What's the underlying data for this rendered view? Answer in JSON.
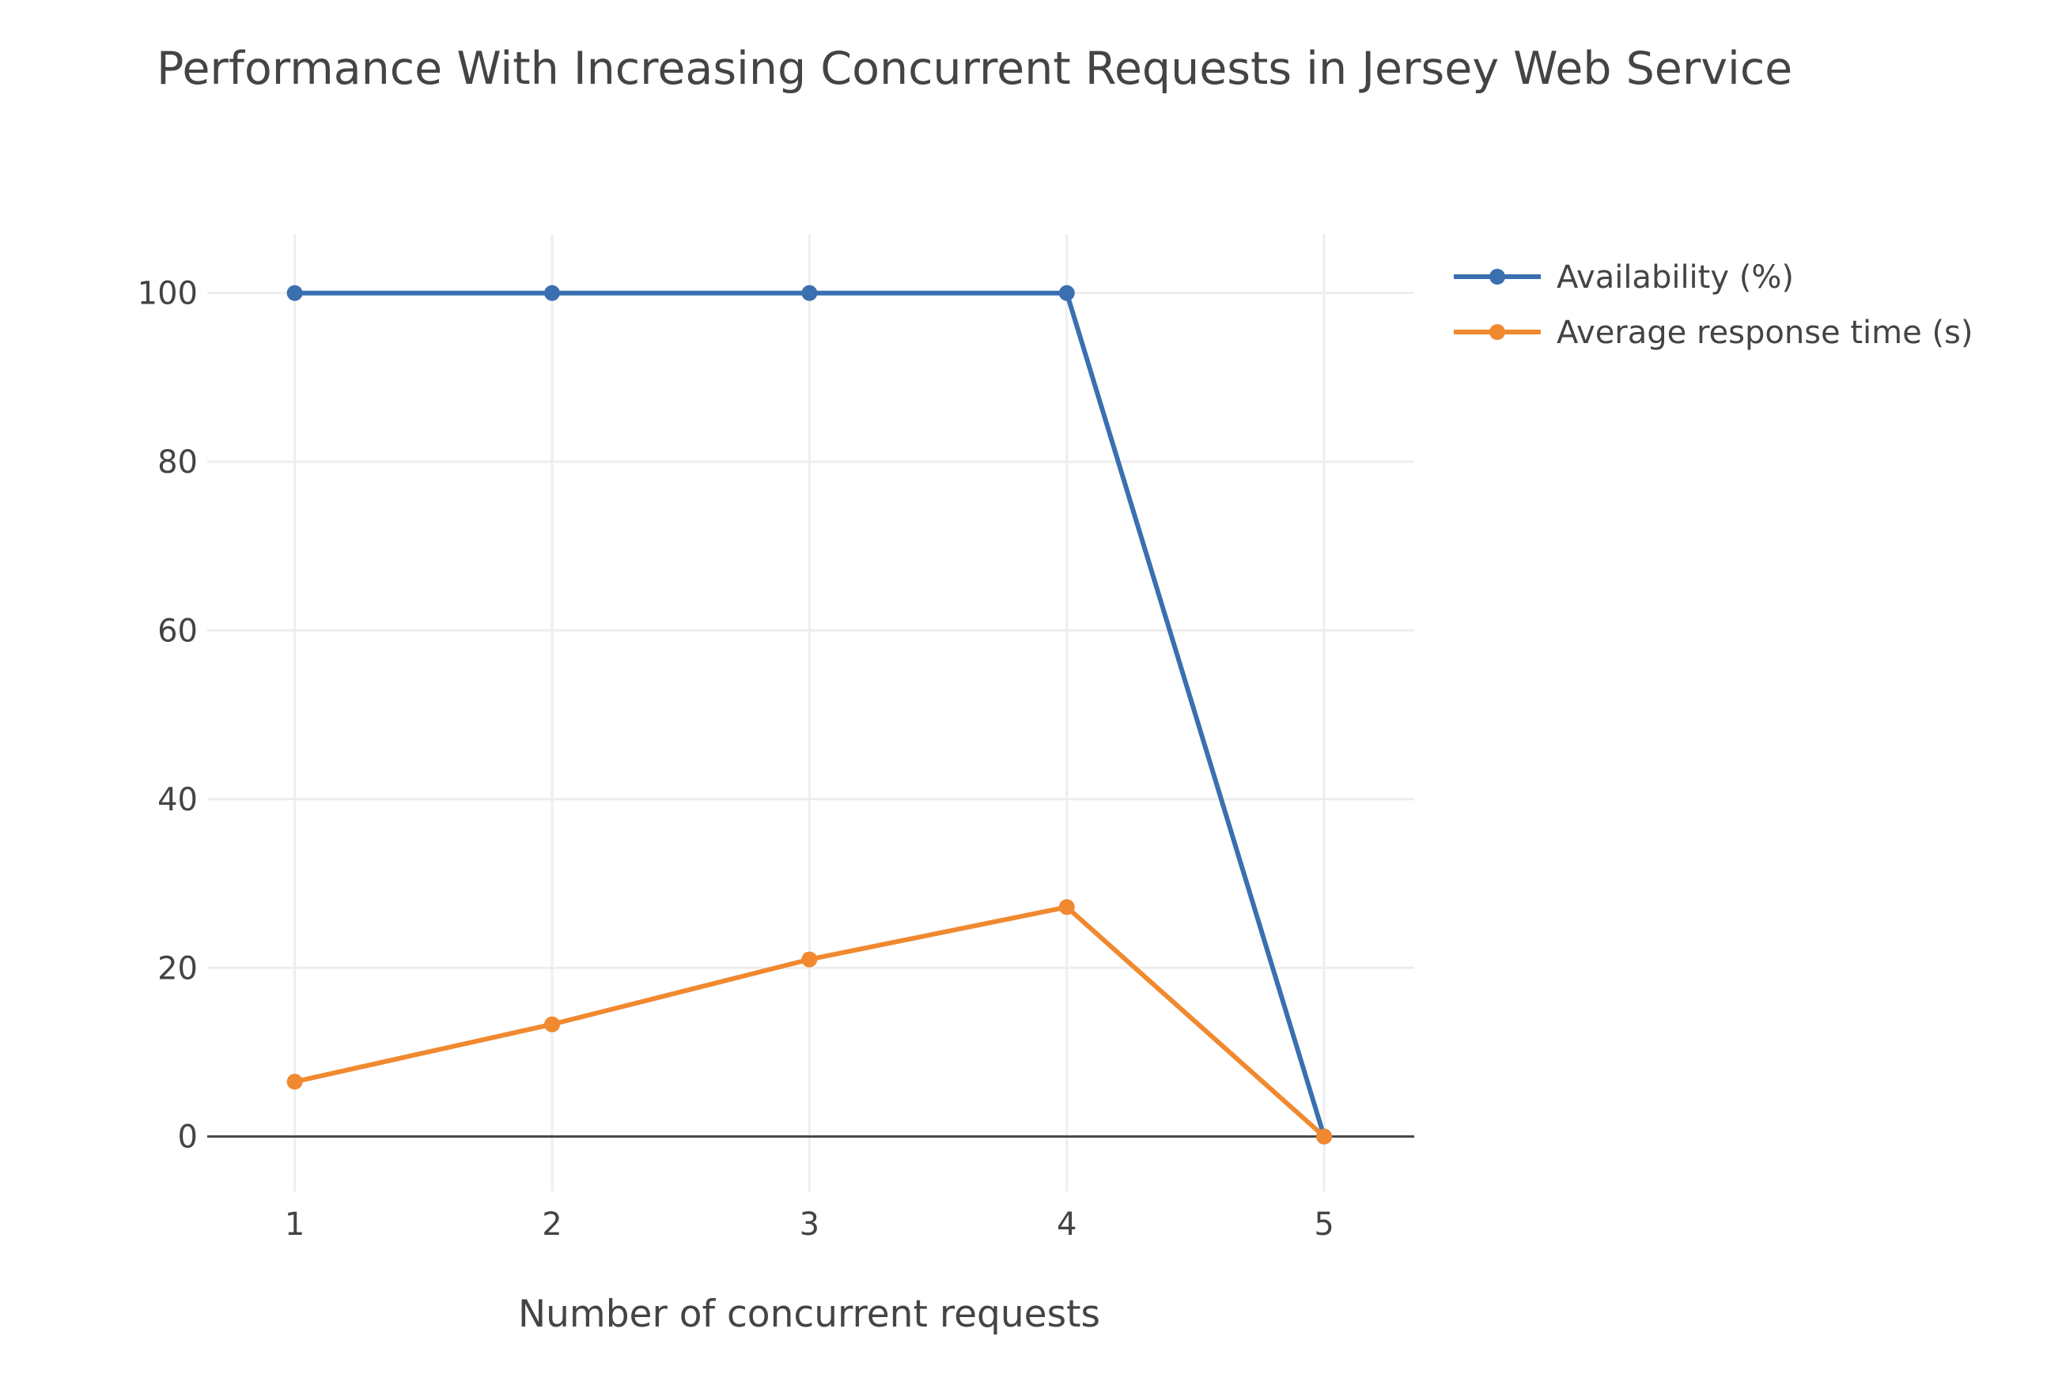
{
  "chart_data": {
    "type": "line",
    "title": "Performance With Increasing Concurrent Requests in Jersey Web Service",
    "xlabel": "Number of concurrent requests",
    "ylabel": "",
    "x": [
      1,
      2,
      3,
      4,
      5
    ],
    "x_tick_labels": [
      "1",
      "2",
      "3",
      "4",
      "5"
    ],
    "y_ticks": [
      0,
      20,
      40,
      60,
      80,
      100
    ],
    "y_tick_labels": [
      "0",
      "20",
      "40",
      "60",
      "80",
      "100"
    ],
    "xlim": [
      0.66,
      5.35
    ],
    "ylim": [
      -6.5,
      107
    ],
    "grid": true,
    "legend_position": "top-right",
    "series": [
      {
        "name": "Availability (%)",
        "color": "#3a6fb0",
        "values": [
          100,
          100,
          100,
          100,
          0
        ]
      },
      {
        "name": "Average response time (s)",
        "color": "#f0892f",
        "values": [
          6.5,
          13.3,
          21,
          27.2,
          0
        ]
      }
    ]
  }
}
